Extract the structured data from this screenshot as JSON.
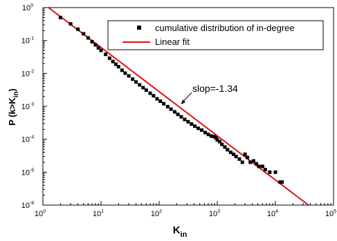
{
  "chart_data": {
    "type": "scatter",
    "xscale": "log",
    "yscale": "log",
    "xlim": [
      1,
      100000
    ],
    "ylim": [
      1e-06,
      1
    ],
    "xlabel": {
      "base": "K",
      "sub": "in"
    },
    "ylabel": {
      "pre": "P (k>K",
      "sub": "in",
      "post": ")"
    },
    "xticks": [
      {
        "value": 1,
        "base": "10",
        "exp": "0"
      },
      {
        "value": 10,
        "base": "10",
        "exp": "1"
      },
      {
        "value": 100,
        "base": "10",
        "exp": "2"
      },
      {
        "value": 1000,
        "base": "10",
        "exp": "3"
      },
      {
        "value": 10000,
        "base": "10",
        "exp": "4"
      },
      {
        "value": 100000,
        "base": "10",
        "exp": "5"
      }
    ],
    "yticks": [
      {
        "value": 1,
        "base": "10",
        "exp": "0"
      },
      {
        "value": 0.1,
        "base": "10",
        "exp": "-1"
      },
      {
        "value": 0.01,
        "base": "10",
        "exp": "-2"
      },
      {
        "value": 0.001,
        "base": "10",
        "exp": "-3"
      },
      {
        "value": 0.0001,
        "base": "10",
        "exp": "-4"
      },
      {
        "value": 1e-05,
        "base": "10",
        "exp": "-5"
      },
      {
        "value": 1e-06,
        "base": "10",
        "exp": "-6"
      }
    ],
    "series": [
      {
        "name": "cumulative distribution of in-degree",
        "marker": "square",
        "color": "#000000",
        "x": [
          2,
          3,
          4,
          5,
          6,
          7,
          8,
          9,
          10,
          12,
          14,
          16,
          18,
          20,
          23,
          26,
          30,
          35,
          40,
          46,
          53,
          60,
          70,
          80,
          92,
          105,
          120,
          140,
          160,
          185,
          210,
          240,
          275,
          315,
          360,
          410,
          470,
          540,
          620,
          700,
          790,
          880,
          950,
          1000,
          1100,
          1200,
          1350,
          1500,
          1700,
          1900,
          2100,
          2400,
          2700,
          3000,
          3300,
          3700,
          4200,
          4700,
          5200,
          6000,
          6700,
          8000,
          10000,
          12000,
          13000
        ],
        "y": [
          0.5,
          0.32,
          0.22,
          0.16,
          0.12,
          0.092,
          0.074,
          0.06,
          0.05,
          0.038,
          0.029,
          0.023,
          0.019,
          0.016,
          0.0125,
          0.0102,
          0.0084,
          0.0067,
          0.0055,
          0.0045,
          0.0037,
          0.0031,
          0.0025,
          0.0021,
          0.0017,
          0.00143,
          0.0012,
          0.00098,
          0.00082,
          0.00068,
          0.00057,
          0.00048,
          0.0004,
          0.00034,
          0.00029,
          0.00025,
          0.000215,
          0.00019,
          0.00016,
          0.00014,
          0.000125,
          0.00012,
          0.00011,
          9.5e-05,
          8.5e-05,
          7e-05,
          5.8e-05,
          4.8e-05,
          4e-05,
          3.5e-05,
          3e-05,
          2.5e-05,
          2e-05,
          3.5e-05,
          2.8e-05,
          2e-05,
          2.2e-05,
          1.8e-05,
          1.5e-05,
          1.5e-05,
          1.2e-05,
          1e-05,
          1e-05,
          5e-06,
          5e-06
        ]
      },
      {
        "name": "Linear fit",
        "marker": "line",
        "color": "#dd1111",
        "x": [
          1.25,
          37000
        ],
        "y": [
          1,
          1e-06
        ]
      }
    ],
    "legend": {
      "position": "top-right"
    },
    "annotation": {
      "text": "slop=-1.34",
      "x": 450,
      "y": 0.0008
    },
    "grid": false
  }
}
